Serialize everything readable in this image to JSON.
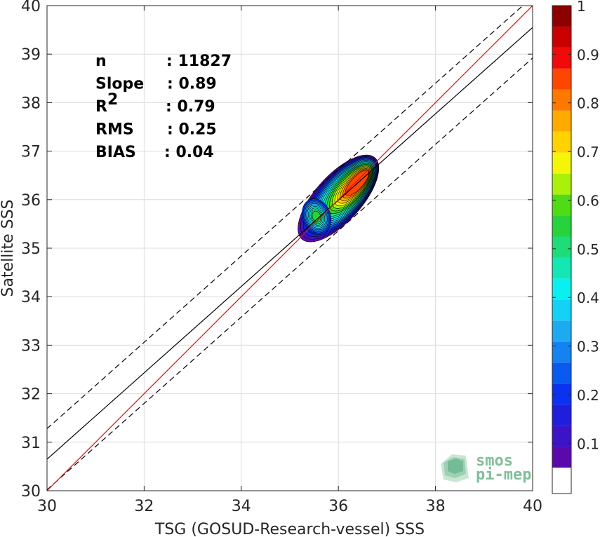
{
  "chart_data": {
    "type": "scatter",
    "subtype": "density-contour",
    "xlabel": "TSG (GOSUD-Research-vessel) SSS",
    "ylabel": "Satellite SSS",
    "xlim": [
      30,
      40
    ],
    "ylim": [
      30,
      40
    ],
    "xticks": [
      "30",
      "32",
      "34",
      "36",
      "38",
      "40"
    ],
    "yticks": [
      "30",
      "31",
      "32",
      "33",
      "34",
      "35",
      "36",
      "37",
      "38",
      "39",
      "40"
    ],
    "grid": true,
    "stats": [
      {
        "label": "n",
        "value": ": 11827"
      },
      {
        "label": "Slope",
        "value": ": 0.89"
      },
      {
        "label": "R",
        "sup": "2",
        "value": ": 0.79"
      },
      {
        "label": "RMS",
        "value": ": 0.25"
      },
      {
        "label": "BIAS",
        "value": ": 0.04"
      }
    ],
    "lines": {
      "identity": {
        "color": "#ff0000",
        "points": [
          [
            30,
            30
          ],
          [
            40,
            40
          ]
        ]
      },
      "regression": {
        "color": "#000000",
        "points": [
          [
            30,
            30.65
          ],
          [
            40,
            39.55
          ]
        ]
      },
      "upper_bound": {
        "color": "#000000",
        "dash": true,
        "points": [
          [
            30,
            31.28
          ],
          [
            40,
            40.18
          ]
        ]
      },
      "lower_bound": {
        "color": "#000000",
        "dash": true,
        "points": [
          [
            30,
            30.02
          ],
          [
            40,
            38.92
          ]
        ]
      }
    },
    "density_peaks": [
      {
        "x": 36.45,
        "y": 36.4,
        "level": 1.0
      },
      {
        "x": 35.55,
        "y": 35.65,
        "level": 0.6
      }
    ],
    "colorbar": {
      "ticks": [
        "0.1",
        "0.2",
        "0.3",
        "0.4",
        "0.5",
        "0.6",
        "0.7",
        "0.8",
        "0.9",
        "1"
      ],
      "tick_values": [
        0.1,
        0.2,
        0.3,
        0.4,
        0.5,
        0.6,
        0.7,
        0.8,
        0.9,
        1.0
      ],
      "levels": [
        0.05,
        0.1,
        0.15,
        0.2,
        0.25,
        0.3,
        0.35,
        0.4,
        0.45,
        0.5,
        0.55,
        0.6,
        0.65,
        0.7,
        0.75,
        0.8,
        0.85,
        0.9,
        0.95
      ],
      "colors": [
        "#ffffff",
        "#5a0aaa",
        "#3c14c8",
        "#1e1edc",
        "#0a32f0",
        "#0a5af0",
        "#1482f0",
        "#1eaaf0",
        "#14d2f5",
        "#0af0f0",
        "#14e6b4",
        "#1edc78",
        "#28d23c",
        "#50dc14",
        "#aaf00a",
        "#f5f50a",
        "#ffd200",
        "#ffaa00",
        "#ff7800",
        "#ff4600",
        "#f00a0a",
        "#c80000",
        "#8c0000"
      ]
    }
  },
  "watermark": {
    "line1": "smos",
    "line2": "pi-mep"
  }
}
